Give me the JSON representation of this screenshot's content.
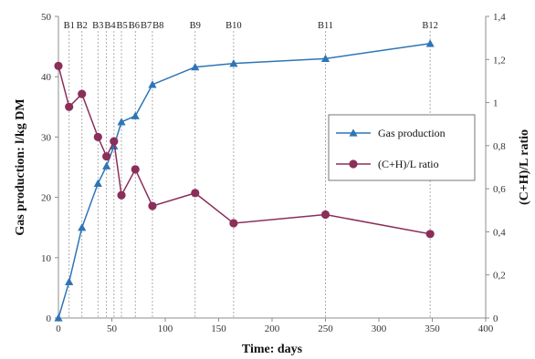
{
  "chart_data": {
    "type": "line",
    "xlabel": "Time: days",
    "ylabel_left": "Gas production: l/kg DM",
    "ylabel_right": "(C+H)/L ratio",
    "xlim": [
      0,
      400
    ],
    "ylim_left": [
      0,
      50
    ],
    "ylim_right": [
      0,
      1.4
    ],
    "x_ticks": [
      0,
      50,
      100,
      150,
      200,
      250,
      300,
      350,
      400
    ],
    "y_left_ticks": [
      0,
      10,
      20,
      30,
      40,
      50
    ],
    "y_right_ticks": [
      "0",
      "0,2",
      "0,4",
      "0,6",
      "0,8",
      "1",
      "1,2",
      "1,4"
    ],
    "y_right_tick_values": [
      0,
      0.2,
      0.4,
      0.6,
      0.8,
      1.0,
      1.2,
      1.4
    ],
    "grid": false,
    "legend_position": "right",
    "batch_markers": [
      {
        "label": "B1",
        "x": 10
      },
      {
        "label": "B2",
        "x": 22
      },
      {
        "label": "B3",
        "x": 37
      },
      {
        "label": "B4",
        "x": 45
      },
      {
        "label": "B5",
        "x": 52
      },
      {
        "label": "B6",
        "x": 59
      },
      {
        "label": "B7",
        "x": 72
      },
      {
        "label": "B8",
        "x": 88
      },
      {
        "label": "B9",
        "x": 128
      },
      {
        "label": "B10",
        "x": 164
      },
      {
        "label": "B11",
        "x": 250
      },
      {
        "label": "B12",
        "x": 348
      }
    ],
    "series": [
      {
        "name": "Gas production",
        "axis": "left",
        "color": "#2e75b6",
        "marker": "triangle",
        "x": [
          0,
          10,
          22,
          37,
          45,
          52,
          59,
          72,
          88,
          128,
          164,
          250,
          348
        ],
        "y": [
          0,
          6,
          15,
          22.3,
          25.2,
          28.5,
          32.5,
          33.5,
          38.7,
          41.6,
          42.2,
          43,
          45.5
        ]
      },
      {
        "name": "(C+H)/L ratio",
        "axis": "right",
        "color": "#8b2e5a",
        "marker": "circle",
        "x": [
          0,
          10,
          22,
          37,
          45,
          52,
          59,
          72,
          88,
          128,
          164,
          250,
          348
        ],
        "y": [
          1.17,
          0.98,
          1.04,
          0.84,
          0.75,
          0.82,
          0.57,
          0.69,
          0.52,
          0.58,
          0.44,
          0.48,
          0.39
        ]
      }
    ]
  }
}
